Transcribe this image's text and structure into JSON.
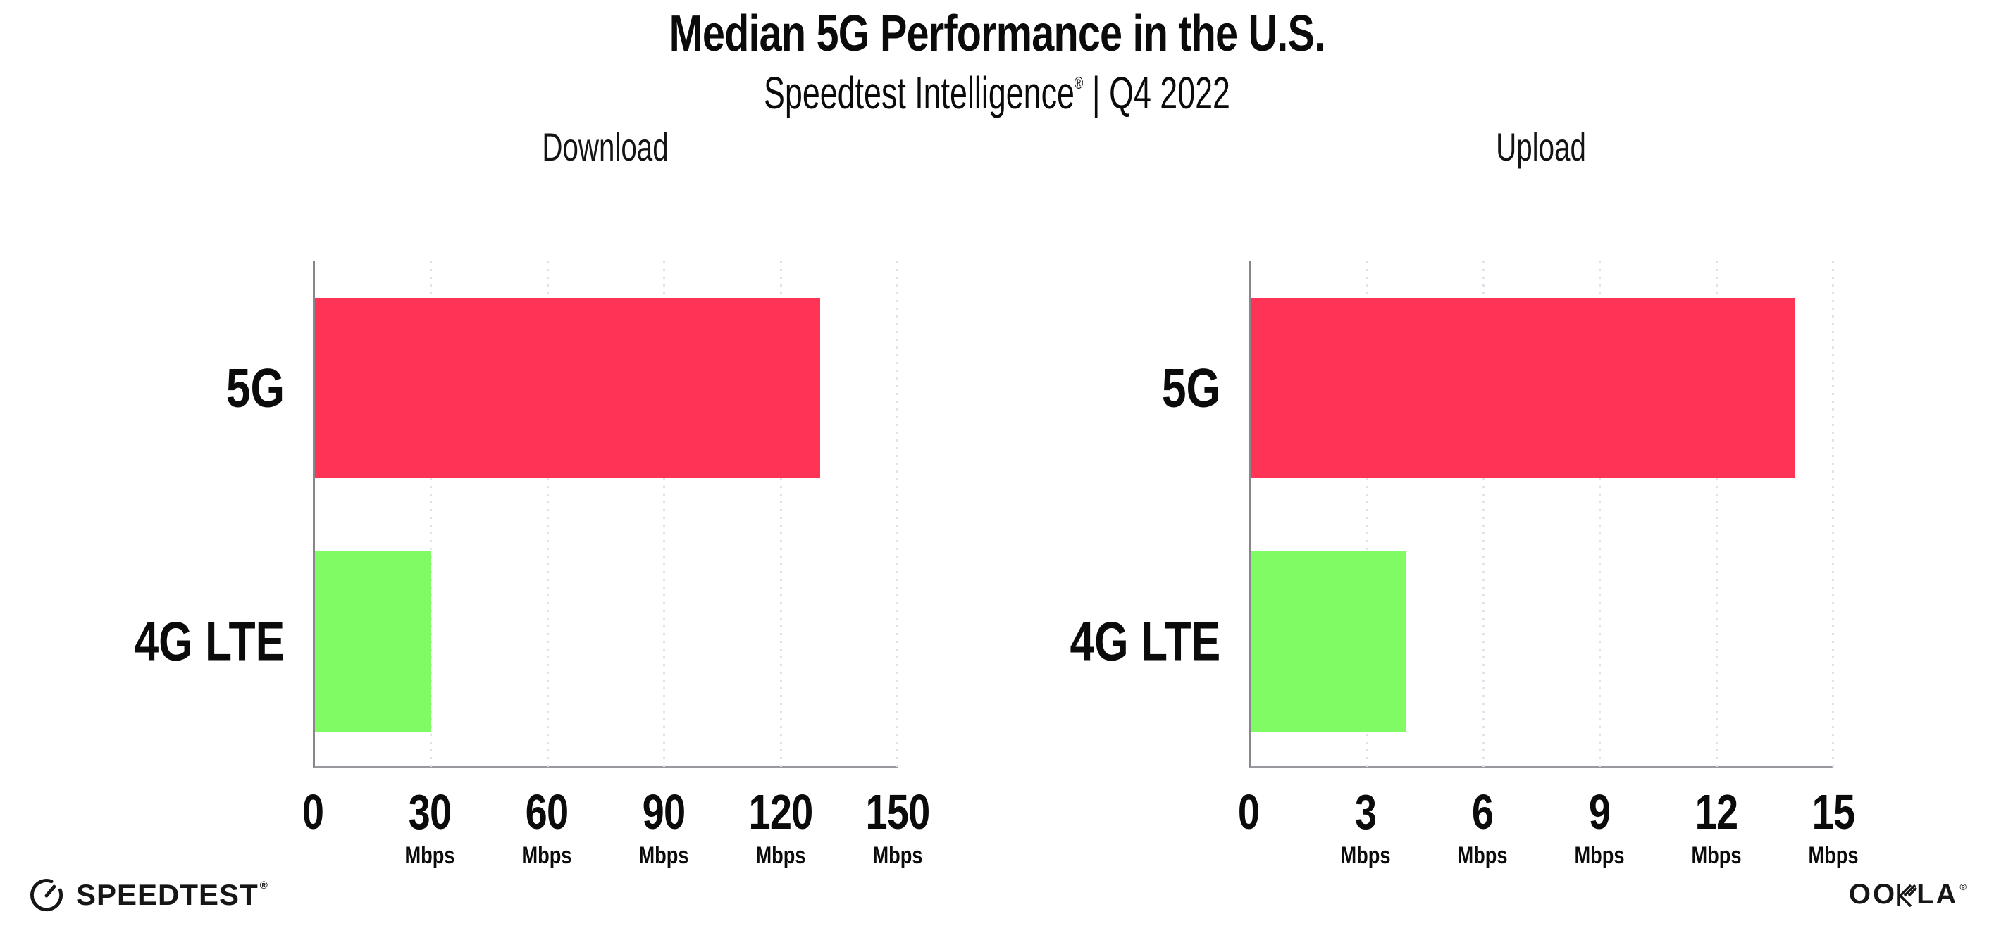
{
  "header": {
    "title": "Median 5G Performance in the U.S.",
    "subtitle": {
      "brand": "Speedtest Intelligence",
      "registered_mark": "®",
      "separator": "|",
      "period": "Q4 2022"
    }
  },
  "chart_data": [
    {
      "type": "bar",
      "orientation": "horizontal",
      "title": "Download",
      "categories": [
        "5G",
        "4G LTE"
      ],
      "values": [
        130,
        30
      ],
      "unit": "Mbps",
      "xlim": [
        0,
        150
      ],
      "xticks": [
        0,
        30,
        60,
        90,
        120,
        150
      ],
      "bar_colors": [
        "#FF3356",
        "#80FB63"
      ],
      "grid": "dotted vertical lines at each x tick",
      "legend": "none"
    },
    {
      "type": "bar",
      "orientation": "horizontal",
      "title": "Upload",
      "categories": [
        "5G",
        "4G LTE"
      ],
      "values": [
        14,
        4
      ],
      "unit": "Mbps",
      "xlim": [
        0,
        15
      ],
      "xticks": [
        0,
        3,
        6,
        9,
        12,
        15
      ],
      "bar_colors": [
        "#FF3356",
        "#80FB63"
      ],
      "grid": "dotted vertical lines at each x tick",
      "legend": "none"
    }
  ],
  "footer": {
    "speedtest": {
      "wordmark": "SPEEDTEST",
      "registered_mark": "®"
    },
    "ookla": {
      "part1": "OO",
      "k_letter": "K",
      "part2": "LA",
      "registered_mark": "®"
    }
  },
  "colors": {
    "bar_5g": "#FF3356",
    "bar_4g_lte": "#80FB63",
    "axis": "#98989F",
    "gridline": "#E2E2EE",
    "text": "#0B0B0B"
  }
}
